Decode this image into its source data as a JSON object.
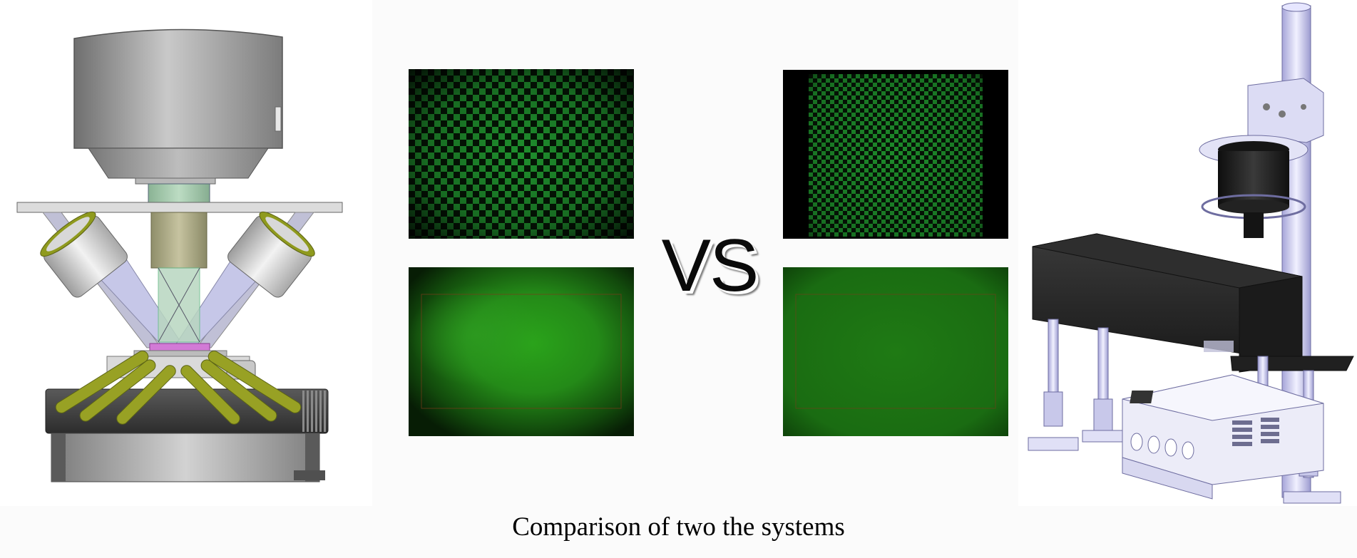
{
  "center": {
    "vs_label": "VS"
  },
  "caption": {
    "text": "Comparison of two the systems"
  },
  "colors": {
    "fluorescence_green": "#2aa31a",
    "checker_dark": "#041004",
    "render_purple": "#c9c8ec",
    "render_dark_box": "#262626",
    "lamp_yellow": "#8f9a1e"
  },
  "images": [
    {
      "name": "system-a-cad-render"
    },
    {
      "name": "system-a-checkerboard-image"
    },
    {
      "name": "system-a-flatfield-image"
    },
    {
      "name": "system-b-checkerboard-image"
    },
    {
      "name": "system-b-flatfield-image"
    },
    {
      "name": "system-b-cad-render"
    }
  ]
}
